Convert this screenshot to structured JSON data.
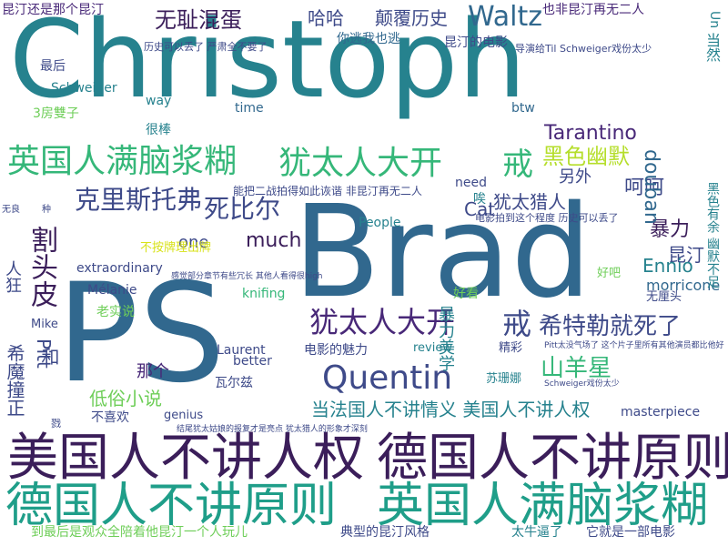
{
  "palette": {
    "dark_purple": "#3b1e5a",
    "purple": "#482878",
    "indigo": "#3e4a89",
    "blue": "#31688e",
    "teal": "#26828e",
    "teal_green": "#1f9e89",
    "green": "#35b779",
    "lime": "#6ece58",
    "yellow_green": "#b5de2b",
    "yellow": "#d8e219"
  },
  "words": [
    {
      "text": "Christoph",
      "tone": "teal"
    },
    {
      "text": "Brad",
      "tone": "blue"
    },
    {
      "text": "PS",
      "tone": "blue"
    },
    {
      "text": "美国人不讲人权",
      "tone": "dark_purple"
    },
    {
      "text": "德国人不讲原则",
      "tone": "dark_purple"
    },
    {
      "text": "德国人不讲原则",
      "tone": "teal_green"
    },
    {
      "text": "英国人满脑浆糊",
      "tone": "teal_green"
    },
    {
      "text": "英国人满脑浆糊",
      "tone": "green"
    },
    {
      "text": "犹太人大开",
      "tone": "green"
    },
    {
      "text": "戒",
      "tone": "green"
    },
    {
      "text": "犹太人大开",
      "tone": "purple"
    },
    {
      "text": "戒",
      "tone": "indigo"
    },
    {
      "text": "Quentin",
      "tone": "indigo"
    },
    {
      "text": "希特勒就死了",
      "tone": "indigo"
    },
    {
      "text": "克里斯托弗",
      "tone": "indigo"
    },
    {
      "text": "死比尔",
      "tone": "indigo"
    },
    {
      "text": "Waltz",
      "tone": "blue"
    },
    {
      "text": "割头皮",
      "tone": "dark_purple"
    },
    {
      "text": "无耻混蛋",
      "tone": "dark_purple"
    },
    {
      "text": "山羊星",
      "tone": "green"
    },
    {
      "text": "黑色幽默",
      "tone": "yellow_green"
    },
    {
      "text": "当法国人不讲情义 美国人不讲人权",
      "tone": "teal"
    },
    {
      "text": "Tarantino",
      "tone": "purple"
    },
    {
      "text": "哈哈",
      "tone": "indigo"
    },
    {
      "text": "颠覆历史",
      "tone": "indigo"
    },
    {
      "text": "犹太猎人",
      "tone": "indigo"
    },
    {
      "text": "呵呵",
      "tone": "indigo"
    },
    {
      "text": "暴力",
      "tone": "dark_purple"
    },
    {
      "text": "昆汀",
      "tone": "indigo"
    },
    {
      "text": "Ennio",
      "tone": "teal"
    },
    {
      "text": "douban",
      "tone": "blue"
    },
    {
      "text": "much",
      "tone": "dark_purple"
    },
    {
      "text": "希魔撞正",
      "tone": "indigo"
    },
    {
      "text": "低俗小说",
      "tone": "lime"
    },
    {
      "text": "那个",
      "tone": "purple"
    },
    {
      "text": "Pitt",
      "tone": "indigo"
    },
    {
      "text": "和",
      "tone": "indigo"
    },
    {
      "text": "Cat",
      "tone": "indigo"
    },
    {
      "text": "one",
      "tone": "indigo"
    },
    {
      "text": "另外",
      "tone": "indigo"
    },
    {
      "text": "morricone",
      "tone": "blue"
    },
    {
      "text": "暴力美学",
      "tone": "teal"
    },
    {
      "text": "人狂",
      "tone": "indigo"
    },
    {
      "text": "也非昆汀再无二人",
      "tone": "purple"
    },
    {
      "text": "昆汀还是那个昆汀",
      "tone": "purple"
    },
    {
      "text": "你逃我也逃",
      "tone": "blue"
    },
    {
      "text": "昆汀的电影",
      "tone": "indigo"
    },
    {
      "text": "最后",
      "tone": "indigo"
    },
    {
      "text": "Schweiger",
      "tone": "teal"
    },
    {
      "text": "3房雙子",
      "tone": "lime"
    },
    {
      "text": "way",
      "tone": "teal"
    },
    {
      "text": "time",
      "tone": "blue"
    },
    {
      "text": "很棒",
      "tone": "teal"
    },
    {
      "text": "btw",
      "tone": "blue"
    },
    {
      "text": "need",
      "tone": "indigo"
    },
    {
      "text": "People",
      "tone": "teal"
    },
    {
      "text": "knifing",
      "tone": "green"
    },
    {
      "text": "Mélanie",
      "tone": "indigo"
    },
    {
      "text": "老实说",
      "tone": "lime"
    },
    {
      "text": "Mike",
      "tone": "indigo"
    },
    {
      "text": "Laurent",
      "tone": "indigo"
    },
    {
      "text": "better",
      "tone": "indigo"
    },
    {
      "text": "review",
      "tone": "teal"
    },
    {
      "text": "电影的魅力",
      "tone": "indigo"
    },
    {
      "text": "瓦尔兹",
      "tone": "indigo"
    },
    {
      "text": "不喜欢",
      "tone": "indigo"
    },
    {
      "text": "genius",
      "tone": "indigo"
    },
    {
      "text": "典型的昆汀风格",
      "tone": "indigo"
    },
    {
      "text": "太牛逼了",
      "tone": "teal"
    },
    {
      "text": "它就是一部电影",
      "tone": "indigo"
    },
    {
      "text": "到最后是观众全陪着他昆汀一个人玩儿",
      "tone": "lime"
    },
    {
      "text": "masterpiece",
      "tone": "indigo"
    },
    {
      "text": "extraordinary",
      "tone": "indigo"
    },
    {
      "text": "好看",
      "tone": "lime"
    },
    {
      "text": "好吧",
      "tone": "lime"
    },
    {
      "text": "精彩",
      "tone": "indigo"
    },
    {
      "text": "无厘头",
      "tone": "indigo"
    },
    {
      "text": "苏珊娜",
      "tone": "teal"
    },
    {
      "text": "不按牌理出牌",
      "tone": "yellow"
    },
    {
      "text": "能把二战拍得如此诙谐 非昆汀再无二人",
      "tone": "indigo"
    },
    {
      "text": "电影拍到这个程度 历史可以丢了",
      "tone": "indigo"
    },
    {
      "text": "历史可以丢了 严肃全不要了",
      "tone": "indigo"
    },
    {
      "text": "导演给Til Schweiger戏份太少",
      "tone": "indigo"
    },
    {
      "text": "当然",
      "tone": "teal"
    },
    {
      "text": "黑色有余 幽默不足",
      "tone": "teal"
    },
    {
      "text": "Un",
      "tone": "teal"
    },
    {
      "text": "唉",
      "tone": "teal"
    },
    {
      "text": "Pitt太没气场了 这个片子里所有其他演员都比他好",
      "tone": "indigo"
    },
    {
      "text": "感觉部分章节有些冗长 其他人看得很high",
      "tone": "indigo"
    },
    {
      "text": "Schweiger戏份太少",
      "tone": "indigo"
    },
    {
      "text": "无良",
      "tone": "indigo"
    },
    {
      "text": "种",
      "tone": "indigo"
    },
    {
      "text": "结尾犹太姑娘的报复才是亮点 犹太猎人的形象才深刻",
      "tone": "indigo"
    },
    {
      "text": "戮",
      "tone": "indigo"
    }
  ]
}
